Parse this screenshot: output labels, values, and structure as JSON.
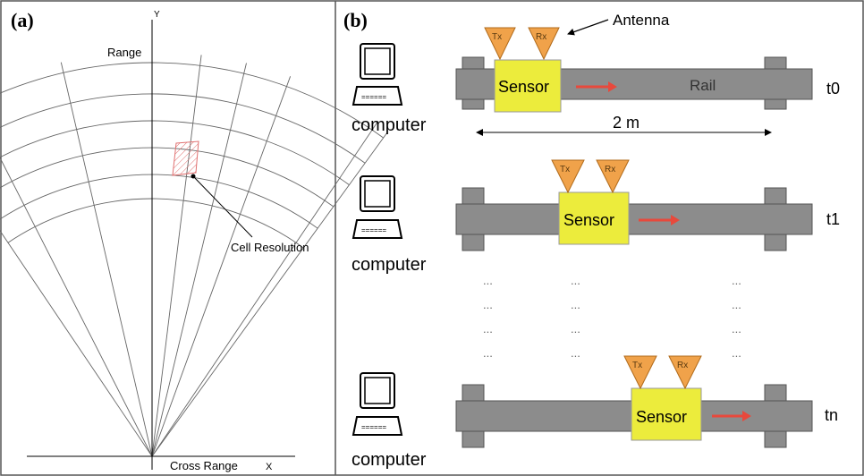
{
  "panel_a": {
    "label": "(a)",
    "y_axis_letter": "Y",
    "y_axis_label": "Range",
    "x_axis_label": "Cross Range",
    "x_axis_letter": "X",
    "cell_label": "Cell Resolution"
  },
  "panel_b": {
    "label": "(b)",
    "antenna_label": "Antenna",
    "computer_label": "computer",
    "sensor_label": "Sensor",
    "tx_label": "Tx",
    "rx_label": "Rx",
    "rail_label": "Rail",
    "distance_label": "2 m",
    "dots": "...",
    "rows": [
      {
        "time": "t0"
      },
      {
        "time": "t1"
      },
      {
        "time": "tn"
      }
    ]
  },
  "colors": {
    "rail": "#8c8c8c",
    "sensor": "#ecec3c",
    "antenna": "#f0a24a",
    "arrow": "#e8493c",
    "hatch": "#e07070"
  }
}
